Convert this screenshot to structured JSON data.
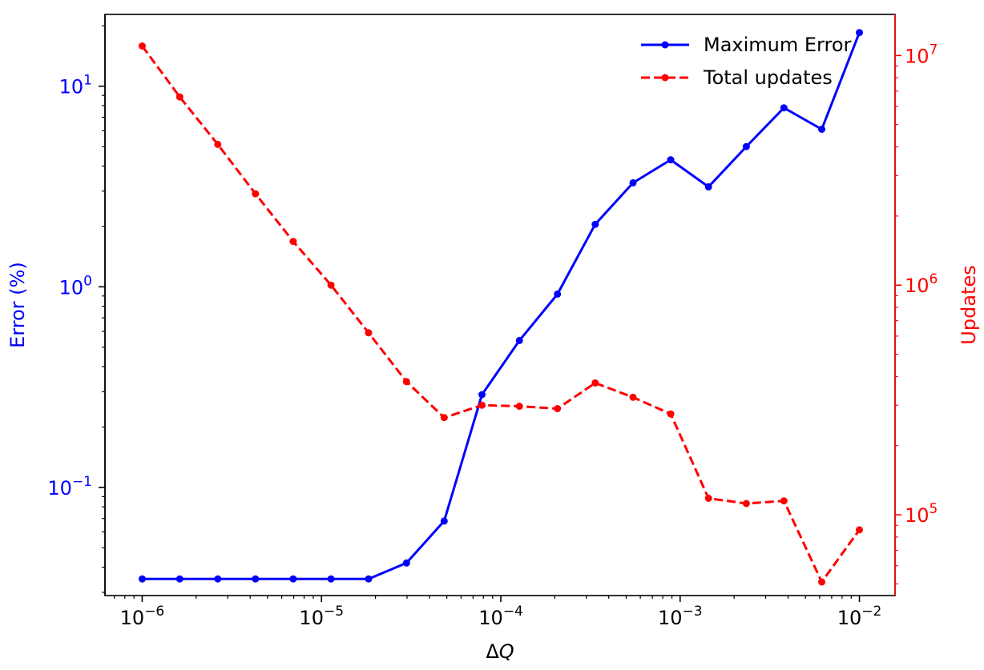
{
  "chart_data": {
    "type": "line",
    "xlabel": "ΔQ",
    "ylabel_left": "Error (%)",
    "ylabel_right": "Updates",
    "x_scale": "log",
    "y_left_scale": "log",
    "y_right_scale": "log",
    "xlim": [
      6.2e-07,
      0.0158
    ],
    "ylim_left": [
      0.0289,
      22.8
    ],
    "ylim_right": [
      44500,
      15100000
    ],
    "x_ticks": [
      {
        "exp": "−6",
        "value": 1e-06
      },
      {
        "exp": "−5",
        "value": 1e-05
      },
      {
        "exp": "−4",
        "value": 0.0001
      },
      {
        "exp": "−3",
        "value": 0.001
      },
      {
        "exp": "−2",
        "value": 0.01
      }
    ],
    "y_left_ticks": [
      {
        "exp": "1",
        "value": 10
      },
      {
        "exp": "0",
        "value": 1
      },
      {
        "exp": "−1",
        "value": 0.1
      }
    ],
    "y_right_ticks": [
      {
        "exp": "7",
        "value": 10000000
      },
      {
        "exp": "6",
        "value": 1000000
      },
      {
        "exp": "5",
        "value": 100000
      }
    ],
    "tick_base": "10",
    "x": [
      1e-06,
      1.62e-06,
      2.64e-06,
      4.28e-06,
      6.95e-06,
      1.13e-05,
      1.83e-05,
      2.98e-05,
      4.83e-05,
      7.85e-05,
      0.000127,
      0.000207,
      0.000336,
      0.000546,
      0.000886,
      0.00144,
      0.00234,
      0.00379,
      0.00616,
      0.01
    ],
    "series": [
      {
        "name": "Maximum Error",
        "axis": "left",
        "color": "#0000ff",
        "style": "solid",
        "values": [
          0.035,
          0.035,
          0.035,
          0.035,
          0.035,
          0.035,
          0.035,
          0.042,
          0.068,
          0.29,
          0.54,
          0.92,
          2.05,
          3.3,
          4.3,
          3.15,
          5.0,
          7.8,
          6.1,
          18.5
        ]
      },
      {
        "name": "Total updates",
        "axis": "right",
        "color": "#ff0000",
        "style": "dashed",
        "values": [
          11000000,
          6600000,
          4100000,
          2500000,
          1550000,
          1000000,
          620000,
          380000,
          265000,
          300000,
          297000,
          290000,
          375000,
          325000,
          275000,
          118000,
          112000,
          115000,
          51000,
          86000
        ]
      }
    ],
    "legend": {
      "placement": "top-right"
    },
    "grid": false
  }
}
